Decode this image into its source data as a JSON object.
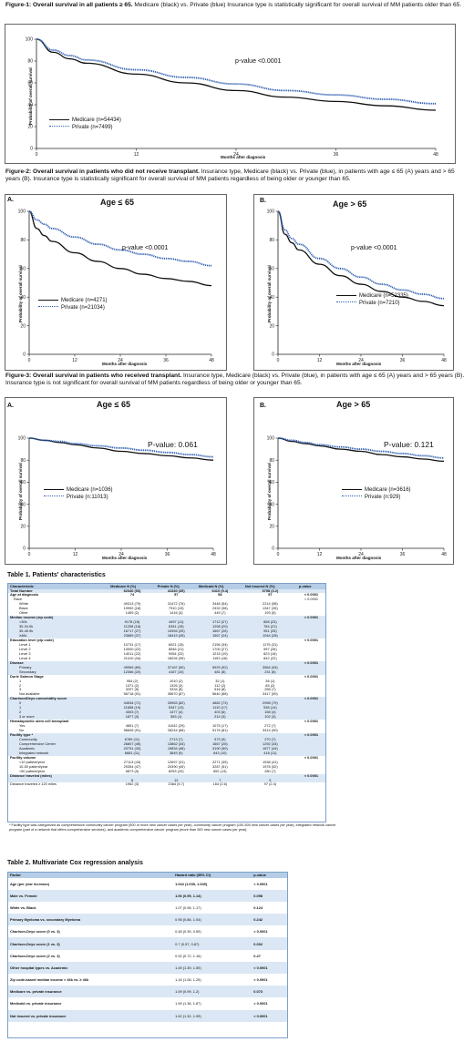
{
  "fig1": {
    "caption_title": "Figure-1: Overall survival in all patients ≥ 65.",
    "caption_text": " Medicare (black) vs. Private (blue) Insurance type is statistically significant for overall survival of MM patients older than 65.",
    "pvalue": "p-value <0.0001",
    "legend": [
      "Medicare (n=54434)",
      "Private (n=7499)"
    ],
    "ylabel": "Probability of overall survival",
    "xlabel": "Months after diagnosis"
  },
  "fig2": {
    "caption_title": "Figure-2: Overall survival in patients who did not receive transplant.",
    "caption_text": " Insurance type, Medicare (black) vs. Private (blue), in patients with age ≤ 65 (A) years and > 65 years (B). Insurance type is statistically significant for overall survival of MM patients regardless of being older or younger than 65.",
    "a": {
      "letter": "A.",
      "title": "Age ≤ 65",
      "pvalue": "p-value <0.0001",
      "legend": [
        "Medicare (n=4271)",
        "Private (n=21034)"
      ]
    },
    "b": {
      "letter": "B.",
      "title": "Age > 65",
      "pvalue": "p-value <0.0001",
      "legend": [
        "Medicare (n=52335)",
        "Private (n=7210)"
      ]
    },
    "ylabel": "Probability of overall survival",
    "xlabel": "Months after diagnosis"
  },
  "fig3": {
    "caption_title": "Figure-3: Overall survival in patients who received transplant.",
    "caption_text": " Insurance type, Medicare (black) vs. Private (blue), in patients with age ≤ 65 (A) years and > 65 years (B). Insurance type is not significant for overall survival of MM patients regardless of being older or younger than 65.",
    "a": {
      "letter": "A.",
      "title": "Age ≤ 65",
      "pvalue": "P-value: 0.061",
      "legend": [
        "Medicare (n=1036)",
        "Private (n:11013)"
      ]
    },
    "b": {
      "letter": "B.",
      "title": "Age > 65",
      "pvalue": "P-value: 0.121",
      "legend": [
        "Medicare (n=3616)",
        "Private (n:929)"
      ]
    },
    "ylabel": "Probability of overall survival",
    "xlabel": "Months after diagnosis"
  },
  "chart_data": [
    {
      "type": "line",
      "figure": "Figure-1",
      "xlabel": "Months after diagnosis",
      "ylabel": "Probability of overall survival",
      "xlim": [
        0,
        48
      ],
      "ylim": [
        0,
        100
      ],
      "x_ticks": [
        0,
        12,
        24,
        36,
        48
      ],
      "y_ticks": [
        0,
        20,
        40,
        60,
        80,
        100
      ],
      "series": [
        {
          "name": "Medicare (n=54434)",
          "color": "#111111",
          "x": [
            0,
            2,
            4,
            6,
            12,
            18,
            24,
            30,
            36,
            42,
            48
          ],
          "values": [
            100,
            88,
            82,
            78,
            68,
            60,
            53,
            47,
            43,
            39,
            35
          ]
        },
        {
          "name": "Private (n=7499)",
          "color": "#2f5fb3",
          "x": [
            0,
            2,
            4,
            6,
            12,
            18,
            24,
            30,
            36,
            42,
            48
          ],
          "values": [
            100,
            90,
            85,
            81,
            72,
            65,
            59,
            53,
            49,
            45,
            41
          ]
        }
      ]
    },
    {
      "type": "line",
      "figure": "Figure-2A",
      "title": "Age ≤ 65",
      "xlabel": "Months after diagnosis",
      "ylabel": "Probability of overall survival",
      "xlim": [
        0,
        48
      ],
      "ylim": [
        0,
        100
      ],
      "x_ticks": [
        0,
        12,
        24,
        36,
        48
      ],
      "y_ticks": [
        0,
        20,
        40,
        60,
        80,
        100
      ],
      "series": [
        {
          "name": "Medicare (n=4271)",
          "color": "#111111",
          "x": [
            0,
            2,
            4,
            6,
            12,
            18,
            24,
            30,
            36,
            42,
            48
          ],
          "values": [
            100,
            88,
            83,
            79,
            71,
            65,
            60,
            56,
            53,
            51,
            48
          ]
        },
        {
          "name": "Private (n=21034)",
          "color": "#2f5fb3",
          "x": [
            0,
            2,
            4,
            6,
            12,
            18,
            24,
            30,
            36,
            42,
            48
          ],
          "values": [
            100,
            94,
            91,
            88,
            82,
            77,
            73,
            70,
            67,
            65,
            62
          ]
        }
      ]
    },
    {
      "type": "line",
      "figure": "Figure-2B",
      "title": "Age > 65",
      "xlabel": "Months after diagnosis",
      "ylabel": "Probability of overall survival",
      "xlim": [
        0,
        48
      ],
      "ylim": [
        0,
        100
      ],
      "x_ticks": [
        0,
        12,
        24,
        36,
        48
      ],
      "y_ticks": [
        0,
        20,
        40,
        60,
        80,
        100
      ],
      "series": [
        {
          "name": "Medicare (n=52335)",
          "color": "#111111",
          "x": [
            0,
            2,
            4,
            6,
            12,
            18,
            24,
            30,
            36,
            42,
            48
          ],
          "values": [
            100,
            84,
            78,
            73,
            63,
            55,
            49,
            44,
            40,
            37,
            34
          ]
        },
        {
          "name": "Private (n=7210)",
          "color": "#2f5fb3",
          "x": [
            0,
            2,
            4,
            6,
            12,
            18,
            24,
            30,
            36,
            42,
            48
          ],
          "values": [
            100,
            87,
            81,
            77,
            67,
            60,
            54,
            49,
            45,
            42,
            39
          ]
        }
      ]
    },
    {
      "type": "line",
      "figure": "Figure-3A",
      "title": "Age ≤ 65",
      "xlabel": "Months after diagnosis",
      "ylabel": "Probability of overall survival",
      "xlim": [
        0,
        48
      ],
      "ylim": [
        0,
        100
      ],
      "x_ticks": [
        0,
        12,
        24,
        36,
        48
      ],
      "y_ticks": [
        0,
        20,
        40,
        60,
        80,
        100
      ],
      "series": [
        {
          "name": "Medicare (n=1036)",
          "color": "#111111",
          "x": [
            0,
            4,
            8,
            12,
            18,
            24,
            30,
            36,
            42,
            48
          ],
          "values": [
            100,
            98,
            96,
            94,
            91,
            88,
            86,
            84,
            82,
            80
          ]
        },
        {
          "name": "Private (n:11013)",
          "color": "#2f5fb3",
          "x": [
            0,
            4,
            8,
            12,
            18,
            24,
            30,
            36,
            42,
            48
          ],
          "values": [
            100,
            98,
            97,
            95,
            93,
            91,
            89,
            87,
            85,
            83
          ]
        }
      ]
    },
    {
      "type": "line",
      "figure": "Figure-3B",
      "title": "Age > 65",
      "xlabel": "Months after diagnosis",
      "ylabel": "Probability of overall survival",
      "xlim": [
        0,
        48
      ],
      "ylim": [
        0,
        100
      ],
      "x_ticks": [
        0,
        12,
        24,
        36,
        48
      ],
      "y_ticks": [
        0,
        20,
        40,
        60,
        80,
        100
      ],
      "series": [
        {
          "name": "Medicare (n=3616)",
          "color": "#111111",
          "x": [
            0,
            4,
            8,
            12,
            18,
            24,
            30,
            36,
            42,
            48
          ],
          "values": [
            100,
            97,
            95,
            93,
            90,
            88,
            85,
            83,
            81,
            79
          ]
        },
        {
          "name": "Private (n:929)",
          "color": "#2f5fb3",
          "x": [
            0,
            4,
            8,
            12,
            18,
            24,
            30,
            36,
            42,
            48
          ],
          "values": [
            100,
            98,
            96,
            94,
            92,
            90,
            88,
            86,
            84,
            82
          ]
        }
      ]
    }
  ],
  "table1": {
    "title": "Table 1. Patients' characteristics",
    "headers": [
      "Characteristic",
      "Medicare N (%)",
      "Private N (%)",
      "Medicaid N (%)",
      "Not insured N (%)",
      "p-value"
    ],
    "rows": [
      [
        "Total Number",
        "62340 (53)",
        "41340 (35)",
        "6410 (5.4)",
        "3798 (3.2)",
        ""
      ],
      [
        "Age at diagnosis",
        "74",
        "57",
        "58",
        "57",
        "< 0.0001"
      ],
      [
        "  Race",
        "",
        "",
        "",
        "",
        "< 0.0001"
      ],
      [
        "    White",
        "49313 (79)",
        "31472 (76)",
        "3446 (54)",
        "2214 (58)",
        ""
      ],
      [
        "    Black",
        "10992 (18)",
        "7910 (19)",
        "2432 (38)",
        "1347 (35)",
        ""
      ],
      [
        "    Other",
        "1459 (2)",
        "1416 (3)",
        "449 (7)",
        "193 (5)",
        ""
      ],
      [
        "Median income (zip code)",
        "",
        "",
        "",
        "",
        "< 0.0001"
      ],
      [
        "    <30k",
        "9178 (15)",
        "4497 (11)",
        "1712 (27)",
        "858 (23)",
        ""
      ],
      [
        "    30-34.9k",
        "11258 (18)",
        "6341 (15)",
        "1258 (20)",
        "784 (21)",
        ""
      ],
      [
        "    35-45.9k",
        "16717 (27)",
        "10394 (25)",
        "1667 (26)",
        "951 (25)",
        ""
      ],
      [
        "    ≥46k",
        "23889 (37)",
        "18419 (45)",
        "1567 (24)",
        "1044 (28)",
        ""
      ],
      [
        "Education level (zip code)",
        "",
        "",
        "",
        "",
        "< 0.0001"
      ],
      [
        "    Level 1",
        "10731 (17)",
        "6021 (15)",
        "2156 (34)",
        "1175 (31)",
        ""
      ],
      [
        "    Level 2",
        "14000 (22)",
        "8546 (21)",
        "1700 (27)",
        "997 (26)",
        ""
      ],
      [
        "    Level 3",
        "14011 (22)",
        "9054 (22)",
        "1215 (19)",
        "823 (16)",
        ""
      ],
      [
        "    Level 4",
        "21410 (34)",
        "16026 (39)",
        "1153 (18)",
        "842 (22)",
        ""
      ],
      [
        "Disease",
        "",
        "",
        "",
        "",
        "< 0.0001"
      ],
      [
        "    Primary",
        "49969 (80)",
        "37167 (90)",
        "5929 (92)",
        "3564 (94)",
        ""
      ],
      [
        "    Secondary",
        "12366 (20)",
        "4167 (10)",
        "481 (8)",
        "231 (6)",
        ""
      ],
      [
        "Durie Salmon Stage",
        "",
        "",
        "",
        "",
        "< 0.0001"
      ],
      [
        "    1",
        "954 (2)",
        "1010 (2)",
        "32 (1)",
        "36 (1)",
        ""
      ],
      [
        "    2",
        "1371 (2)",
        "1326 (3)",
        "112 (2)",
        "85 (2)",
        ""
      ],
      [
        "    3",
        "3297 (5)",
        "3334 (8)",
        "516 (8)",
        "258 (7)",
        ""
      ],
      [
        "    Not available",
        "56718 (91)",
        "35670 (87)",
        "5640 (88)",
        "3417 (90)",
        ""
      ],
      [
        "Charlson/Deyo comorbidity score",
        "",
        "",
        "",
        "",
        "< 0.0001"
      ],
      [
        "    0",
        "44534 (71)",
        "33963 (82)",
        "4682 (73)",
        "2998 (79)",
        ""
      ],
      [
        "    1",
        "11658 (19)",
        "5347 (13)",
        "1110 (17)",
        "538 (14)",
        ""
      ],
      [
        "    2",
        "4303 (7)",
        "1477 (4)",
        "403 (6)",
        "158 (4)",
        ""
      ],
      [
        "    3 or more",
        "1877 (3)",
        "553 (1)",
        "214 (3)",
        "102 (3)",
        ""
      ],
      [
        "Hematopoietic stem cell transplant",
        "",
        "",
        "",
        "",
        "< 0.0001"
      ],
      [
        "    Yes",
        "4651 (7)",
        "11042 (29)",
        "1075 (17)",
        "272 (7)",
        ""
      ],
      [
        "    No",
        "56606 (91)",
        "28244 (68)",
        "5176 (81)",
        "3414 (90)",
        ""
      ],
      [
        "Facility type *",
        "",
        "",
        "",
        "",
        "< 0.0001"
      ],
      [
        "    Community",
        "6789 (11)",
        "2713 (7)",
        "573 (9)",
        "270 (7)",
        ""
      ],
      [
        "    Comprehensive Center",
        "26807 (45)",
        "13862 (34)",
        "1667 (26)",
        "1292 (34)",
        ""
      ],
      [
        "    Academic",
        "20791 (33)",
        "19834 (48)",
        "3190 (50)",
        "1677 (44)",
        ""
      ],
      [
        "    Integrated network",
        "6681 (11)",
        "3849 (9)",
        "643 (10)",
        "416 (11)",
        ""
      ],
      [
        "Facility volume",
        "",
        "",
        "",
        "",
        "< 0.0001"
      ],
      [
        "    <10 patient/year",
        "27113 (43)",
        "12697 (31)",
        "2271 (35)",
        "1538 (41)",
        ""
      ],
      [
        "    10-50 patient/year",
        "29354 (47)",
        "20390 (49)",
        "3287 (51)",
        "1978 (52)",
        ""
      ],
      [
        "    >50 patient/year",
        "5873 (9)",
        "8253 (20)",
        "852 (13)",
        "280 (7)",
        ""
      ],
      [
        "Distance traveled (miles)",
        "",
        "",
        "",
        "",
        "< 0.0001"
      ],
      [
        "",
        "8",
        "12",
        "7",
        "9",
        ""
      ],
      [
        "Distance traveled ≥ 120 miles",
        "1962 (3)",
        "2384 (5.7)",
        "164 (2.6)",
        "97 (2.4)",
        ""
      ]
    ],
    "footnote": "* Facility type was categorized as comprehensive community cancer program (500 or more new cancer cases per year), community cancer program (100-500 new cancer cases per year), integrated network cancer program (part of a network that offers comprehensive services), and academic comprehensive cancer program (more than 500 new cancer cases per year)."
  },
  "table2": {
    "title": "Table 2. Multivariate Cox regression analysis",
    "headers": [
      "Factor",
      "Hazard ratio (95% CI)",
      "p-value"
    ],
    "rows": [
      [
        "Age (per year increase)",
        "1.044 (1.039, 1.049)",
        "< 0.0001"
      ],
      [
        "Male vs. Female",
        "1.06 (0.99, 1.14)",
        "0.098"
      ],
      [
        "White vs. Black",
        "1.07 (0.98, 1.17)",
        "0.124"
      ],
      [
        "Primary Myeloma vs. secondary Myeloma",
        "0.95 (0.86, 1.04)",
        "0.242"
      ],
      [
        "Charlson-Deyo score (0 vs. 3)",
        "0.48 (0.39, 0.59)",
        "< 0.0001"
      ],
      [
        "Charlson-Deyo score (1 vs. 3)",
        "0.7 (0.57, 0.87)",
        "0.002"
      ],
      [
        "Charlson-Deyo score (2 vs. 3)",
        "0.92 (0.72, 1.16)",
        "0.47"
      ],
      [
        "Other hospital types vs. Academic",
        "1.49 (1.39, 1.59)",
        "< 0.0001"
      ],
      [
        "Zip code-based median income < 46k vs. ≥ 46k",
        "1.16 (1.08, 1.25)",
        "< 0.0001"
      ],
      [
        "Medicare vs. private insurance",
        "1.09 (0.99, 1.2)",
        "0.073"
      ],
      [
        "Medicaid vs. private insurance",
        "1.59 (1.36, 1.87)",
        "< 0.0001"
      ],
      [
        "Not insured vs. private insurance",
        "1.62 (1.32, 1.99)",
        "< 0.0001"
      ]
    ]
  }
}
